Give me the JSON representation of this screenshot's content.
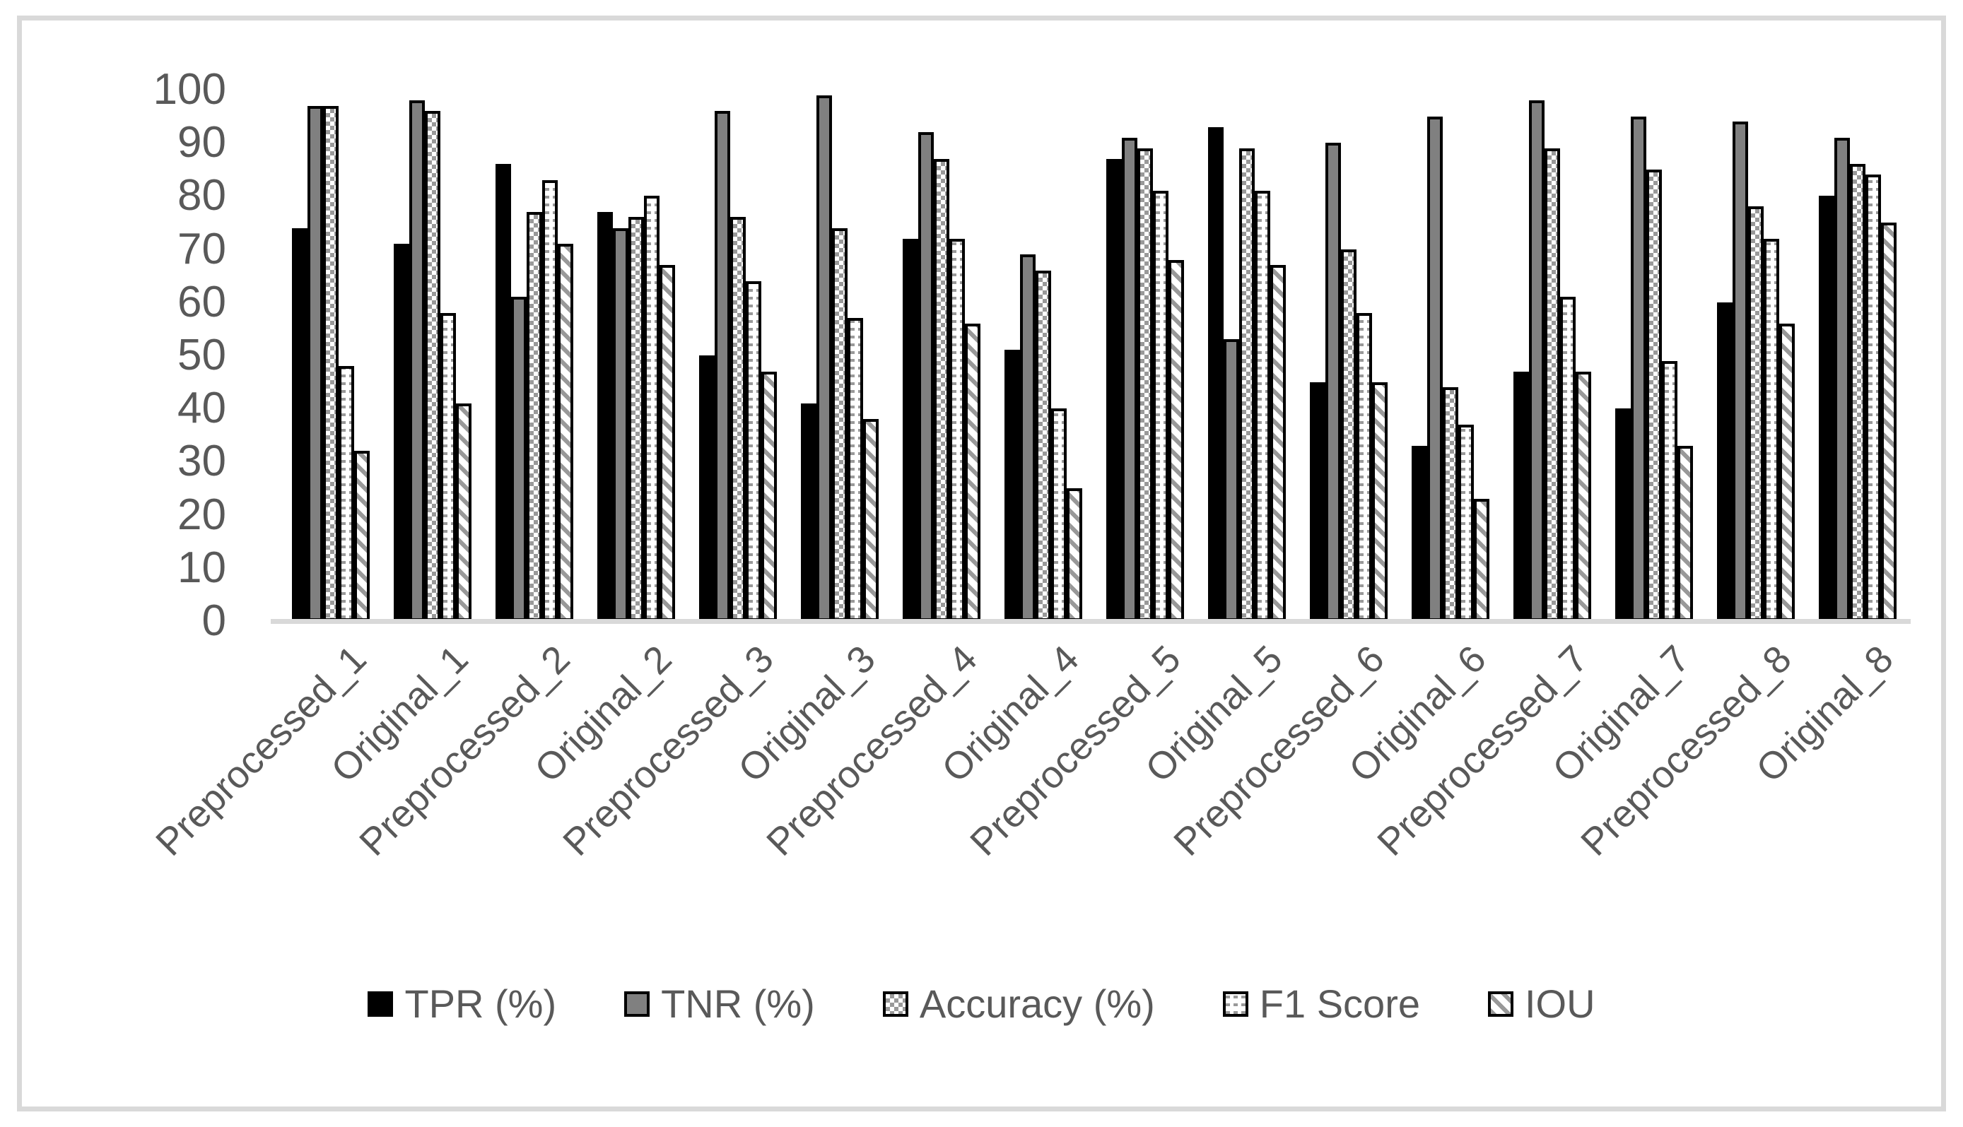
{
  "chart_data": {
    "type": "bar",
    "title": "",
    "xlabel": "",
    "ylabel": "",
    "ylim": [
      0,
      100
    ],
    "yticks": [
      0,
      10,
      20,
      30,
      40,
      50,
      60,
      70,
      80,
      90,
      100
    ],
    "grid": false,
    "legend_position": "bottom",
    "categories": [
      "Preprocessed_1",
      "Original_1",
      "Preprocessed_2",
      "Original_2",
      "Preprocessed_3",
      "Original_3",
      "Preprocessed_4",
      "Original_4",
      "Preprocessed_5",
      "Original_5",
      "Preprocessed_6",
      "Original_6",
      "Preprocessed_7",
      "Original_7",
      "Preprocessed_8",
      "Original_8"
    ],
    "series": [
      {
        "name": "TPR (%)",
        "key": "tpr",
        "style": "solid-black",
        "values": [
          74,
          71,
          86,
          77,
          50,
          41,
          72,
          51,
          87,
          93,
          45,
          33,
          47,
          40,
          60,
          80
        ]
      },
      {
        "name": "TNR (%)",
        "key": "tnr",
        "style": "solid-gray",
        "values": [
          97,
          98,
          61,
          74,
          96,
          99,
          92,
          69,
          91,
          53,
          90,
          95,
          98,
          95,
          94,
          91
        ]
      },
      {
        "name": "Accuracy (%)",
        "key": "acc",
        "style": "checkerboard",
        "values": [
          97,
          96,
          77,
          76,
          76,
          74,
          87,
          66,
          89,
          89,
          70,
          44,
          89,
          85,
          78,
          86
        ]
      },
      {
        "name": "F1 Score",
        "key": "f1",
        "style": "dash-grid",
        "values": [
          48,
          58,
          83,
          80,
          64,
          57,
          72,
          40,
          81,
          81,
          58,
          37,
          61,
          49,
          72,
          84
        ]
      },
      {
        "name": "IOU",
        "key": "iou",
        "style": "diagonal-stripes",
        "values": [
          32,
          41,
          71,
          67,
          47,
          38,
          56,
          25,
          68,
          67,
          45,
          23,
          47,
          33,
          56,
          75
        ]
      }
    ]
  },
  "colors": {
    "frame_border": "#d9d9d9",
    "axis_line": "#d9d9d9",
    "text": "#595959",
    "bar_outline": "#000000",
    "tnr_fill": "#808080",
    "pattern_gray": "#999999",
    "background": "#ffffff"
  }
}
